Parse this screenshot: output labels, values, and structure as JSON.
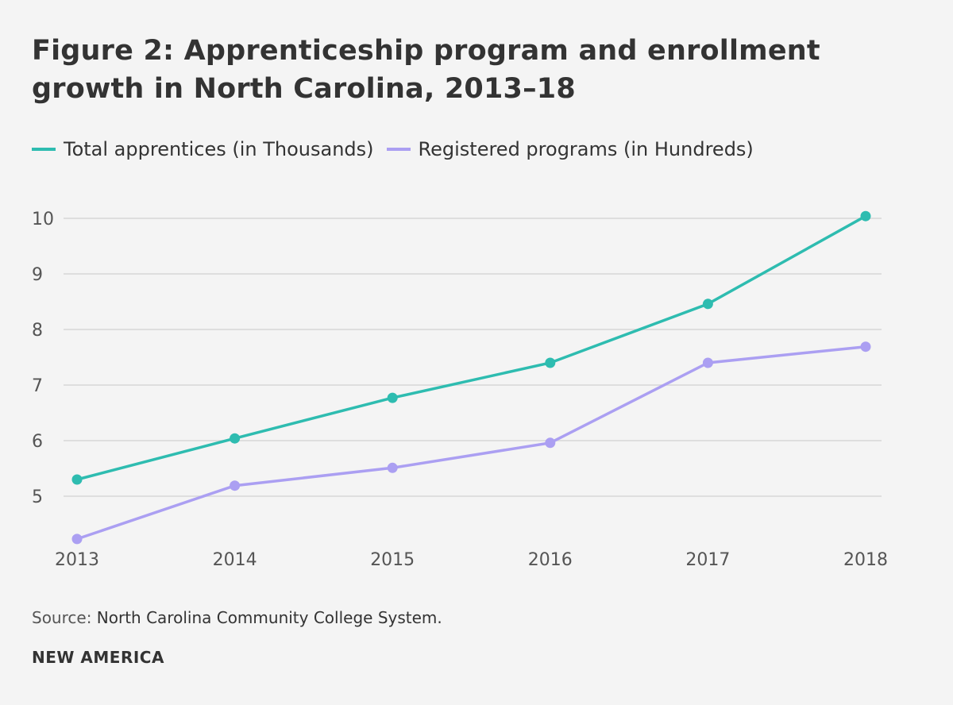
{
  "chart_data": {
    "type": "line",
    "title": "Figure 2: Apprenticeship program and enrollment growth in North Carolina, 2013–18",
    "x": [
      "2013",
      "2014",
      "2015",
      "2016",
      "2017",
      "2018"
    ],
    "yticks": [
      "5",
      "6",
      "7",
      "8",
      "9",
      "10"
    ],
    "ylim": [
      4,
      10
    ],
    "grid": true,
    "legend_position": "top-left",
    "series": [
      {
        "name": "Total apprentices (in Thousands)",
        "color": "#2ebcb0",
        "values": [
          5.3,
          6.04,
          6.77,
          7.4,
          8.46,
          10.04
        ]
      },
      {
        "name": "Registered programs (in Hundreds)",
        "color": "#ab9ff2",
        "values": [
          4.23,
          5.19,
          5.51,
          5.96,
          7.4,
          7.69
        ]
      }
    ]
  },
  "source": {
    "label": "Source:",
    "text": "North Carolina Community College System."
  },
  "brand": "NEW AMERICA"
}
